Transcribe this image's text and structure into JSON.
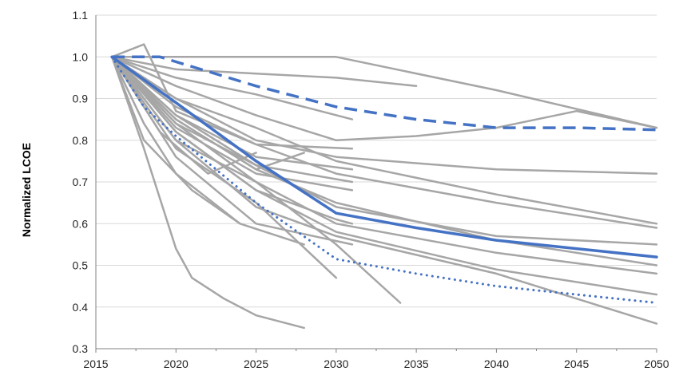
{
  "chart_data": {
    "type": "line",
    "title": "",
    "xlabel": "",
    "ylabel": "Normalized LCOE",
    "xlim": [
      2015,
      2050
    ],
    "ylim": [
      0.3,
      1.1
    ],
    "x_ticks": [
      "2015",
      "2020",
      "2025",
      "2030",
      "2035",
      "2040",
      "2045",
      "2050"
    ],
    "y_ticks": [
      "0.3",
      "0.4",
      "0.5",
      "0.6",
      "0.7",
      "0.8",
      "0.9",
      "1.0",
      "1.1"
    ],
    "grid": "horizontal",
    "legend": "none",
    "colors": {
      "background_lines": "#a6a6a6",
      "highlight": "#4472c4",
      "grid": "#d9d9d9",
      "axis": "#808080"
    },
    "series": [
      {
        "style": "solid",
        "role": "scenario",
        "points": [
          [
            2016,
            1.0
          ],
          [
            2018,
            1.03
          ],
          [
            2020,
            0.87
          ],
          [
            2025,
            0.79
          ],
          [
            2031,
            0.78
          ]
        ]
      },
      {
        "style": "solid",
        "role": "scenario",
        "points": [
          [
            2016,
            1.0
          ],
          [
            2020,
            1.0
          ],
          [
            2025,
            1.0
          ],
          [
            2030,
            1.0
          ],
          [
            2040,
            0.92
          ],
          [
            2050,
            0.83
          ]
        ]
      },
      {
        "style": "solid",
        "role": "scenario",
        "points": [
          [
            2016,
            1.0
          ],
          [
            2020,
            0.97
          ],
          [
            2025,
            0.96
          ],
          [
            2030,
            0.95
          ],
          [
            2035,
            0.93
          ]
        ]
      },
      {
        "style": "solid",
        "role": "scenario",
        "points": [
          [
            2016,
            1.0
          ],
          [
            2020,
            0.95
          ],
          [
            2025,
            0.91
          ],
          [
            2031,
            0.85
          ]
        ]
      },
      {
        "style": "solid",
        "role": "scenario",
        "points": [
          [
            2016,
            1.0
          ],
          [
            2020,
            0.93
          ],
          [
            2025,
            0.86
          ],
          [
            2030,
            0.8
          ],
          [
            2035,
            0.81
          ],
          [
            2040,
            0.83
          ],
          [
            2045,
            0.87
          ],
          [
            2050,
            0.83
          ]
        ]
      },
      {
        "style": "solid",
        "role": "scenario",
        "points": [
          [
            2016,
            1.0
          ],
          [
            2020,
            0.9
          ],
          [
            2025,
            0.8
          ],
          [
            2030,
            0.76
          ],
          [
            2040,
            0.73
          ],
          [
            2050,
            0.72
          ]
        ]
      },
      {
        "style": "solid",
        "role": "scenario",
        "points": [
          [
            2016,
            1.0
          ],
          [
            2020,
            0.9
          ],
          [
            2025,
            0.83
          ],
          [
            2030,
            0.75
          ],
          [
            2040,
            0.67
          ],
          [
            2050,
            0.6
          ]
        ]
      },
      {
        "style": "solid",
        "role": "scenario",
        "points": [
          [
            2016,
            1.0
          ],
          [
            2020,
            0.88
          ],
          [
            2025,
            0.79
          ],
          [
            2030,
            0.72
          ],
          [
            2040,
            0.65
          ],
          [
            2050,
            0.59
          ]
        ]
      },
      {
        "style": "solid",
        "role": "scenario",
        "points": [
          [
            2016,
            1.0
          ],
          [
            2020,
            0.86
          ],
          [
            2025,
            0.74
          ],
          [
            2030,
            0.64
          ],
          [
            2040,
            0.57
          ],
          [
            2050,
            0.55
          ]
        ]
      },
      {
        "style": "solid",
        "role": "scenario",
        "points": [
          [
            2016,
            1.0
          ],
          [
            2020,
            0.85
          ],
          [
            2025,
            0.73
          ],
          [
            2030,
            0.65
          ],
          [
            2040,
            0.56
          ],
          [
            2050,
            0.5
          ]
        ]
      },
      {
        "style": "solid",
        "role": "scenario",
        "points": [
          [
            2016,
            1.0
          ],
          [
            2020,
            0.84
          ],
          [
            2025,
            0.7
          ],
          [
            2030,
            0.6
          ],
          [
            2040,
            0.53
          ],
          [
            2050,
            0.48
          ]
        ]
      },
      {
        "style": "solid",
        "role": "scenario",
        "points": [
          [
            2016,
            1.0
          ],
          [
            2020,
            0.82
          ],
          [
            2025,
            0.68
          ],
          [
            2030,
            0.58
          ],
          [
            2040,
            0.49
          ],
          [
            2050,
            0.43
          ]
        ]
      },
      {
        "style": "solid",
        "role": "scenario",
        "points": [
          [
            2016,
            1.0
          ],
          [
            2020,
            0.8
          ],
          [
            2025,
            0.64
          ],
          [
            2030,
            0.57
          ],
          [
            2040,
            0.48
          ],
          [
            2050,
            0.36
          ]
        ]
      },
      {
        "style": "solid",
        "role": "scenario",
        "points": [
          [
            2016,
            1.0
          ],
          [
            2020,
            0.85
          ],
          [
            2025,
            0.73
          ],
          [
            2028,
            0.77
          ]
        ]
      },
      {
        "style": "solid",
        "role": "scenario",
        "points": [
          [
            2016,
            1.0
          ],
          [
            2020,
            0.86
          ],
          [
            2025,
            0.76
          ],
          [
            2031,
            0.73
          ]
        ]
      },
      {
        "style": "solid",
        "role": "scenario",
        "points": [
          [
            2016,
            1.0
          ],
          [
            2020,
            0.84
          ],
          [
            2025,
            0.74
          ],
          [
            2031,
            0.7
          ]
        ]
      },
      {
        "style": "solid",
        "role": "scenario",
        "points": [
          [
            2016,
            1.0
          ],
          [
            2020,
            0.83
          ],
          [
            2025,
            0.72
          ],
          [
            2031,
            0.68
          ]
        ]
      },
      {
        "style": "solid",
        "role": "scenario",
        "points": [
          [
            2016,
            1.0
          ],
          [
            2020,
            0.82
          ],
          [
            2025,
            0.68
          ],
          [
            2030,
            0.61
          ],
          [
            2031,
            0.6
          ]
        ]
      },
      {
        "style": "solid",
        "role": "scenario",
        "points": [
          [
            2016,
            1.0
          ],
          [
            2020,
            0.8
          ],
          [
            2025,
            0.7
          ],
          [
            2030,
            0.55
          ],
          [
            2034,
            0.41
          ]
        ]
      },
      {
        "style": "solid",
        "role": "scenario",
        "points": [
          [
            2016,
            1.0
          ],
          [
            2020,
            0.78
          ],
          [
            2025,
            0.65
          ],
          [
            2030,
            0.47
          ]
        ]
      },
      {
        "style": "solid",
        "role": "scenario",
        "points": [
          [
            2016,
            1.0
          ],
          [
            2020,
            0.76
          ],
          [
            2025,
            0.6
          ],
          [
            2031,
            0.55
          ]
        ]
      },
      {
        "style": "solid",
        "role": "scenario",
        "points": [
          [
            2016,
            1.0
          ],
          [
            2018,
            0.8
          ],
          [
            2021,
            0.68
          ],
          [
            2024,
            0.6
          ],
          [
            2028,
            0.55
          ]
        ]
      },
      {
        "style": "solid",
        "role": "scenario",
        "points": [
          [
            2016,
            1.0
          ],
          [
            2018,
            0.78
          ],
          [
            2020,
            0.54
          ],
          [
            2021,
            0.47
          ],
          [
            2023,
            0.42
          ],
          [
            2025,
            0.38
          ],
          [
            2028,
            0.35
          ]
        ]
      },
      {
        "style": "solid",
        "role": "scenario",
        "points": [
          [
            2016,
            1.0
          ],
          [
            2018,
            0.84
          ],
          [
            2020,
            0.72
          ],
          [
            2024,
            0.6
          ]
        ]
      },
      {
        "style": "solid",
        "role": "scenario",
        "points": [
          [
            2016,
            1.0
          ],
          [
            2019,
            0.82
          ],
          [
            2022,
            0.72
          ],
          [
            2025,
            0.77
          ]
        ]
      },
      {
        "style": "dashed",
        "role": "highlight",
        "points": [
          [
            2016,
            1.0
          ],
          [
            2019,
            1.0
          ],
          [
            2025,
            0.93
          ],
          [
            2030,
            0.88
          ],
          [
            2035,
            0.85
          ],
          [
            2040,
            0.83
          ],
          [
            2045,
            0.83
          ],
          [
            2050,
            0.825
          ]
        ]
      },
      {
        "style": "solid",
        "role": "highlight",
        "points": [
          [
            2016,
            1.0
          ],
          [
            2020,
            0.89
          ],
          [
            2025,
            0.75
          ],
          [
            2030,
            0.625
          ],
          [
            2035,
            0.59
          ],
          [
            2040,
            0.56
          ],
          [
            2045,
            0.54
          ],
          [
            2050,
            0.52
          ]
        ]
      },
      {
        "style": "dotted",
        "role": "highlight",
        "points": [
          [
            2016,
            1.0
          ],
          [
            2018,
            0.88
          ],
          [
            2020,
            0.81
          ],
          [
            2025,
            0.65
          ],
          [
            2030,
            0.515
          ],
          [
            2035,
            0.48
          ],
          [
            2040,
            0.45
          ],
          [
            2045,
            0.43
          ],
          [
            2050,
            0.41
          ]
        ]
      }
    ]
  }
}
